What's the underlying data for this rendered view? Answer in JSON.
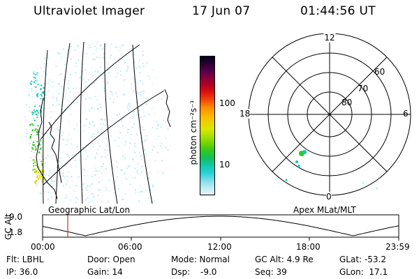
{
  "header": {
    "title": "Ultraviolet Imager",
    "date": "17 Jun 07",
    "time": "01:44:56 UT"
  },
  "colorbar": {
    "label": "photon cm⁻²s⁻¹",
    "ticks": [
      "100",
      "10"
    ],
    "colors": [
      "#000022",
      "#2a0033",
      "#55004d",
      "#88003a",
      "#b8001f",
      "#e0140f",
      "#f04a08",
      "#ff8c00",
      "#ffb000",
      "#f0d000",
      "#d8e800",
      "#a8e000",
      "#6cd400",
      "#30c820",
      "#10c060",
      "#12c8a8",
      "#28d0d8",
      "#78dce8",
      "#b8ecf2",
      "#e6f6fa"
    ],
    "colorbar_mode": "log"
  },
  "polar": {
    "mlt_labels": {
      "top": "12",
      "left": "18",
      "right": "6",
      "bottom": "0"
    },
    "lat_labels": [
      "60",
      "70",
      "80"
    ]
  },
  "timeline": {
    "y_axis_title": "GC Alt",
    "y_ticks": [
      "9.0",
      "1.8"
    ],
    "left_label": "Geographic Lat/Lon",
    "right_label": "Apex MLat/MLT",
    "x_ticks": [
      "00:00",
      "06:00",
      "12:00",
      "18:00",
      "23:59"
    ],
    "marker_color": "#cc0000"
  },
  "info": {
    "flt": "Flt: LBHL",
    "ip": "IP: 36.0",
    "door": "Door: Open",
    "gain": "Gain: 14",
    "mode": "Mode: Normal",
    "dsp_label": "Dsp:",
    "dsp_value": "-9.0",
    "gc_alt": "GC Alt: 4.9 Re",
    "seq": "Seq: 39",
    "glat": "GLat: -53.2",
    "glon": "GLon:  17.1"
  }
}
